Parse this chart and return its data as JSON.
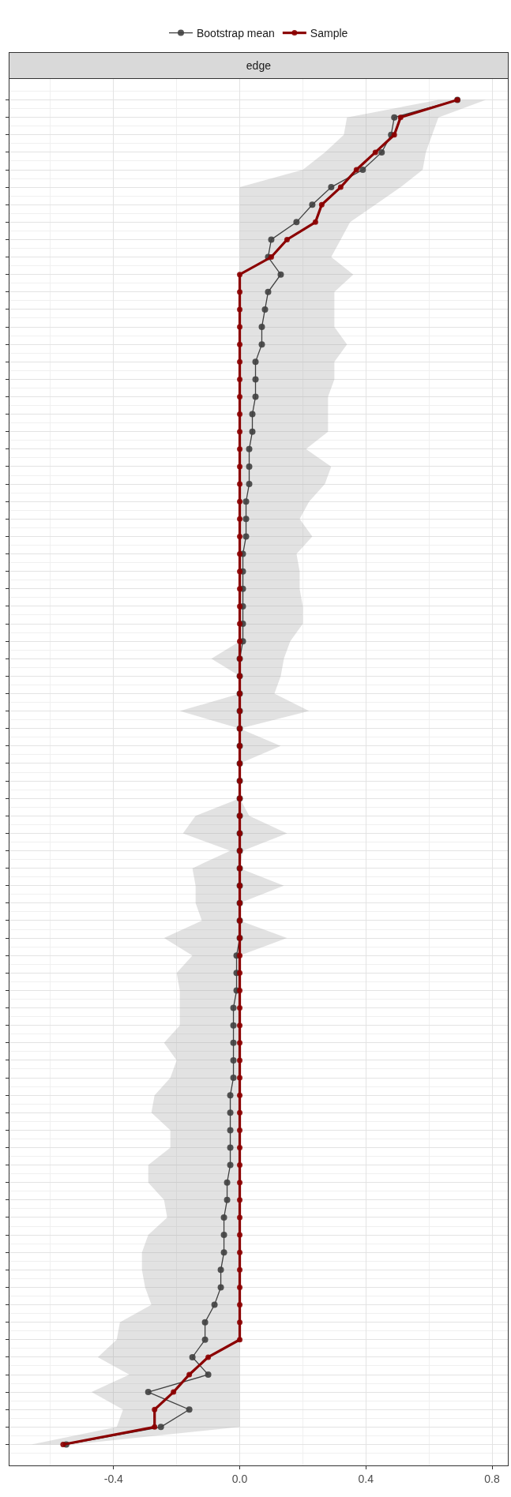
{
  "chart_data": {
    "type": "line",
    "orientation": "horizontal",
    "title": "edge",
    "categories": [
      null,
      null,
      null,
      null,
      null,
      null,
      null,
      null,
      null,
      null,
      null,
      null,
      null,
      null,
      null,
      null,
      null,
      null,
      null,
      null,
      null,
      null,
      null,
      null,
      null,
      null,
      null,
      null,
      null,
      null,
      null,
      null,
      null,
      null,
      null,
      null,
      null,
      null,
      null,
      null,
      null,
      null,
      null,
      null,
      null,
      null,
      null,
      null,
      null,
      null,
      null,
      null,
      null,
      null,
      null,
      null,
      null,
      null,
      null,
      null,
      null,
      null,
      null,
      null,
      null,
      null,
      null,
      null,
      null,
      null,
      null,
      null,
      null,
      null,
      null,
      null,
      null,
      null
    ],
    "series": [
      {
        "name": "Bootstrap mean",
        "color": "#404040",
        "values": [
          0.69,
          0.49,
          0.48,
          0.45,
          0.39,
          0.29,
          0.23,
          0.18,
          0.1,
          0.09,
          0.13,
          0.09,
          0.08,
          0.07,
          0.07,
          0.05,
          0.05,
          0.05,
          0.04,
          0.04,
          0.03,
          0.03,
          0.03,
          0.02,
          0.02,
          0.02,
          0.01,
          0.01,
          0.01,
          0.01,
          0.01,
          0.01,
          0,
          0,
          0,
          0,
          0,
          0,
          0,
          0,
          0,
          0,
          0,
          0,
          0,
          0,
          0,
          0,
          0,
          -0.01,
          -0.01,
          -0.01,
          -0.02,
          -0.02,
          -0.02,
          -0.02,
          -0.02,
          -0.03,
          -0.03,
          -0.03,
          -0.03,
          -0.03,
          -0.04,
          -0.04,
          -0.05,
          -0.05,
          -0.05,
          -0.06,
          -0.06,
          -0.08,
          -0.11,
          -0.11,
          -0.15,
          -0.1,
          -0.29,
          -0.16,
          -0.25,
          -0.55
        ],
        "lower": [
          0.63,
          0.34,
          0.33,
          0.27,
          0.2,
          0,
          0,
          0,
          0,
          0,
          0,
          0,
          0,
          0,
          0,
          0,
          0,
          0,
          0,
          0,
          0,
          0,
          0,
          0,
          0,
          0,
          0,
          0,
          0,
          0,
          0,
          0,
          -0.09,
          0,
          0,
          -0.19,
          0,
          0,
          0,
          0,
          0,
          -0.14,
          -0.18,
          -0.03,
          -0.15,
          -0.14,
          -0.14,
          -0.12,
          -0.24,
          -0.15,
          -0.2,
          -0.19,
          -0.19,
          -0.19,
          -0.24,
          -0.2,
          -0.22,
          -0.27,
          -0.28,
          -0.22,
          -0.22,
          -0.29,
          -0.29,
          -0.24,
          -0.23,
          -0.29,
          -0.31,
          -0.31,
          -0.3,
          -0.28,
          -0.38,
          -0.39,
          -0.45,
          -0.35,
          -0.47,
          -0.37,
          -0.39,
          -0.66
        ],
        "upper": [
          0.78,
          0.63,
          0.61,
          0.59,
          0.58,
          0.51,
          0.43,
          0.35,
          0.32,
          0.29,
          0.36,
          0.3,
          0.3,
          0.3,
          0.34,
          0.3,
          0.3,
          0.28,
          0.28,
          0.28,
          0.21,
          0.29,
          0.27,
          0.22,
          0.19,
          0.23,
          0.18,
          0.19,
          0.19,
          0.2,
          0.2,
          0.16,
          0.14,
          0.13,
          0.11,
          0.22,
          0,
          0.13,
          0,
          0,
          0,
          0.03,
          0.15,
          0.01,
          0,
          0.14,
          0,
          0,
          0.15,
          0,
          0,
          0,
          0,
          0,
          0,
          0,
          0,
          0,
          0,
          0,
          0,
          0,
          0,
          0,
          0,
          0,
          0,
          0,
          0,
          0,
          0,
          0,
          0,
          0,
          0,
          0,
          0,
          -0.53
        ]
      },
      {
        "name": "Sample",
        "color": "#8b0000",
        "values": [
          0.69,
          0.51,
          0.49,
          0.43,
          0.37,
          0.32,
          0.26,
          0.24,
          0.15,
          0.1,
          0,
          0,
          0,
          0,
          0,
          0,
          0,
          0,
          0,
          0,
          0,
          0,
          0,
          0,
          0,
          0,
          0,
          0,
          0,
          0,
          0,
          0,
          0,
          0,
          0,
          0,
          0,
          0,
          0,
          0,
          0,
          0,
          0,
          0,
          0,
          0,
          0,
          0,
          0,
          0,
          0,
          0,
          0,
          0,
          0,
          0,
          0,
          0,
          0,
          0,
          0,
          0,
          0,
          0,
          0,
          0,
          0,
          0,
          0,
          0,
          0,
          0,
          -0.1,
          -0.16,
          -0.21,
          -0.27,
          -0.27,
          -0.56
        ]
      }
    ],
    "xlim": [
      -0.73,
      0.85
    ],
    "xticks": [
      -0.4,
      {
        "value": 0,
        "label": "0.0"
      },
      0.4,
      0.8
    ],
    "grid": true,
    "legend": "top",
    "marker": "circle",
    "line_style": "solid"
  }
}
